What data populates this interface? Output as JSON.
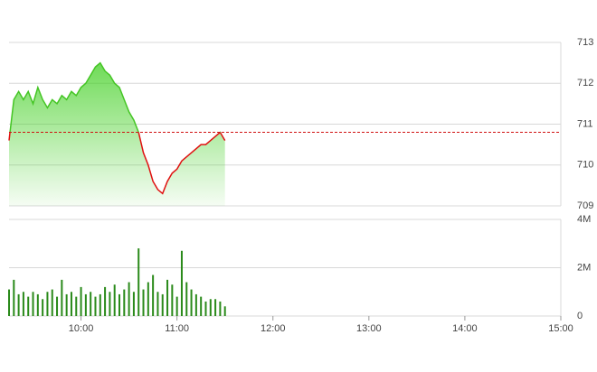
{
  "chart_data": [
    {
      "type": "line",
      "x": [
        "09:15",
        "09:18",
        "09:21",
        "09:24",
        "09:27",
        "09:30",
        "09:33",
        "09:36",
        "09:39",
        "09:42",
        "09:45",
        "09:48",
        "09:51",
        "09:54",
        "09:57",
        "10:00",
        "10:03",
        "10:06",
        "10:09",
        "10:12",
        "10:15",
        "10:18",
        "10:21",
        "10:24",
        "10:27",
        "10:30",
        "10:33",
        "10:36",
        "10:39",
        "10:42",
        "10:45",
        "10:48",
        "10:51",
        "10:54",
        "10:57",
        "11:00",
        "11:03",
        "11:06",
        "11:09",
        "11:12",
        "11:15",
        "11:18",
        "11:21",
        "11:24",
        "11:27",
        "11:30"
      ],
      "values": [
        710.6,
        711.6,
        711.8,
        711.6,
        711.8,
        711.5,
        711.9,
        711.6,
        711.4,
        711.6,
        711.5,
        711.7,
        711.6,
        711.8,
        711.7,
        711.9,
        712.0,
        712.2,
        712.4,
        712.5,
        712.3,
        712.2,
        712.0,
        711.9,
        711.6,
        711.3,
        711.1,
        710.8,
        710.3,
        710.0,
        709.6,
        709.4,
        709.3,
        709.6,
        709.8,
        709.9,
        710.1,
        710.2,
        710.3,
        710.4,
        710.5,
        710.5,
        710.6,
        710.7,
        710.8,
        710.6
      ],
      "reference_value": 710.8,
      "color_above": "#44c524",
      "color_below": "#e01010",
      "reference_color": "#d01010",
      "xlim": [
        "09:15",
        "15:00"
      ],
      "ylim": [
        709,
        713
      ],
      "yticks": [
        709,
        710,
        711,
        712,
        713
      ],
      "grid": true
    },
    {
      "type": "bar",
      "x": [
        "09:15",
        "09:18",
        "09:21",
        "09:24",
        "09:27",
        "09:30",
        "09:33",
        "09:36",
        "09:39",
        "09:42",
        "09:45",
        "09:48",
        "09:51",
        "09:54",
        "09:57",
        "10:00",
        "10:03",
        "10:06",
        "10:09",
        "10:12",
        "10:15",
        "10:18",
        "10:21",
        "10:24",
        "10:27",
        "10:30",
        "10:33",
        "10:36",
        "10:39",
        "10:42",
        "10:45",
        "10:48",
        "10:51",
        "10:54",
        "10:57",
        "11:00",
        "11:03",
        "11:06",
        "11:09",
        "11:12",
        "11:15",
        "11:18",
        "11:21",
        "11:24",
        "11:27",
        "11:30"
      ],
      "values": [
        1100000,
        1500000,
        900000,
        1000000,
        800000,
        1000000,
        900000,
        700000,
        1000000,
        1100000,
        800000,
        1500000,
        900000,
        1000000,
        800000,
        1200000,
        900000,
        1000000,
        800000,
        900000,
        1200000,
        1000000,
        1300000,
        900000,
        1100000,
        1400000,
        1000000,
        2800000,
        1100000,
        1400000,
        1700000,
        1000000,
        900000,
        1500000,
        1300000,
        800000,
        2700000,
        1400000,
        1100000,
        900000,
        800000,
        600000,
        700000,
        700000,
        600000,
        400000
      ],
      "color": "#2a8a1a",
      "xlim": [
        "09:15",
        "15:00"
      ],
      "xticks": [
        "10:00",
        "11:00",
        "12:00",
        "13:00",
        "14:00",
        "15:00"
      ],
      "ylim": [
        0,
        4000000
      ],
      "yticks": [
        0,
        {
          "value": 2000000,
          "label": "2M"
        },
        {
          "value": 4000000,
          "label": "4M"
        }
      ],
      "grid": true
    }
  ]
}
